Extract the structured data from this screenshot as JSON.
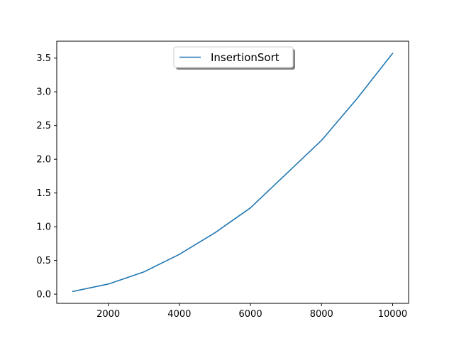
{
  "chart_data": {
    "type": "line",
    "x": [
      1000,
      2000,
      3000,
      4000,
      5000,
      6000,
      7000,
      8000,
      9000,
      10000
    ],
    "series": [
      {
        "name": "InsertionSort",
        "color": "#1f77b4",
        "values": [
          0.04,
          0.15,
          0.33,
          0.59,
          0.91,
          1.28,
          1.78,
          2.28,
          2.9,
          3.57
        ]
      }
    ],
    "xlim": [
      550,
      10450
    ],
    "ylim": [
      -0.136,
      3.75
    ],
    "xticks": [
      2000,
      4000,
      6000,
      8000,
      10000
    ],
    "xtick_labels": [
      "2000",
      "4000",
      "6000",
      "8000",
      "10000"
    ],
    "yticks": [
      0.0,
      0.5,
      1.0,
      1.5,
      2.0,
      2.5,
      3.0,
      3.5
    ],
    "ytick_labels": [
      "0.0",
      "0.5",
      "1.0",
      "1.5",
      "2.0",
      "2.5",
      "3.0",
      "3.5"
    ],
    "grid": false,
    "legend": {
      "placement": "upper-center",
      "shadow": true
    }
  }
}
